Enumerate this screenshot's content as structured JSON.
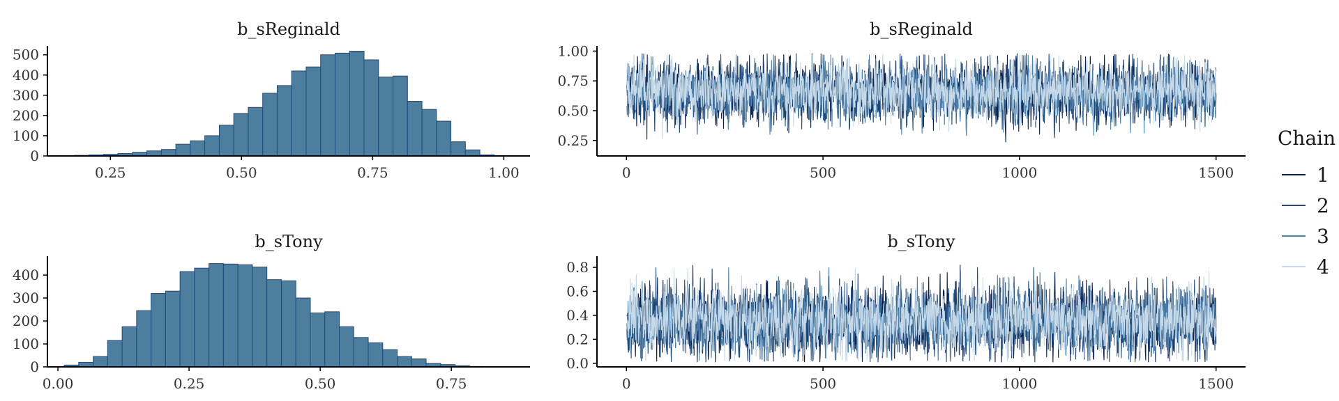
{
  "legend": {
    "title": "Chain",
    "placement": "right",
    "entries": [
      {
        "label": "1",
        "color": "#0b1f4b"
      },
      {
        "label": "2",
        "color": "#1f4a7c"
      },
      {
        "label": "3",
        "color": "#4d7fa8"
      },
      {
        "label": "4",
        "color": "#c6d9e8"
      }
    ]
  },
  "chart_data": [
    {
      "type": "bar",
      "title": "b_sReginald",
      "xlabel": "",
      "ylabel": "",
      "xlim": [
        0.13,
        1.05
      ],
      "ylim": [
        0,
        530
      ],
      "xticks": [
        0.25,
        0.5,
        0.75,
        1.0
      ],
      "xtick_labels": [
        "0.25",
        "0.50",
        "0.75",
        "1.00"
      ],
      "yticks": [
        0,
        100,
        200,
        300,
        400,
        500
      ],
      "ytick_labels": [
        "0",
        "100",
        "200",
        "300",
        "400",
        "500"
      ],
      "bin_width": 0.0276,
      "bin_start": 0.154,
      "values": [
        2,
        3,
        5,
        8,
        12,
        18,
        25,
        32,
        58,
        75,
        100,
        152,
        210,
        240,
        310,
        348,
        420,
        440,
        500,
        508,
        518,
        475,
        390,
        395,
        270,
        230,
        172,
        70,
        30,
        5,
        2
      ],
      "fill": "#4e7e9e",
      "grid": false
    },
    {
      "type": "line",
      "title": "b_sReginald",
      "xlabel": "",
      "ylabel": "",
      "xlim": [
        -75,
        1575
      ],
      "ylim": [
        0.12,
        1.02
      ],
      "xticks": [
        0,
        500,
        1000,
        1500
      ],
      "xtick_labels": [
        "0",
        "500",
        "1000",
        "1500"
      ],
      "yticks": [
        0.25,
        0.5,
        0.75,
        1.0
      ],
      "ytick_labels": [
        "0.25",
        "0.50",
        "0.75",
        "1.00"
      ],
      "iterations": 1500,
      "series": [
        {
          "name": "1",
          "mean": 0.66,
          "sd": 0.13,
          "min": 0.22,
          "max": 0.97
        },
        {
          "name": "2",
          "mean": 0.65,
          "sd": 0.13,
          "min": 0.22,
          "max": 0.98
        },
        {
          "name": "3",
          "mean": 0.66,
          "sd": 0.12,
          "min": 0.2,
          "max": 0.97
        },
        {
          "name": "4",
          "mean": 0.66,
          "sd": 0.12,
          "min": 0.16,
          "max": 0.97
        }
      ],
      "grid": false
    },
    {
      "type": "bar",
      "title": "b_sTony",
      "xlabel": "",
      "ylabel": "",
      "xlim": [
        -0.02,
        0.9
      ],
      "ylim": [
        0,
        470
      ],
      "xticks": [
        0.0,
        0.25,
        0.5,
        0.75
      ],
      "xtick_labels": [
        "0.00",
        "0.25",
        "0.50",
        "0.75"
      ],
      "yticks": [
        0,
        100,
        200,
        300,
        400
      ],
      "ytick_labels": [
        "0",
        "100",
        "200",
        "300",
        "400"
      ],
      "bin_width": 0.0276,
      "bin_start": 0.012,
      "values": [
        8,
        20,
        45,
        115,
        175,
        245,
        320,
        330,
        415,
        430,
        450,
        448,
        445,
        435,
        380,
        375,
        300,
        235,
        240,
        175,
        128,
        105,
        75,
        45,
        35,
        15,
        10,
        5,
        2,
        1
      ],
      "fill": "#4e7e9e",
      "grid": false
    },
    {
      "type": "line",
      "title": "b_sTony",
      "xlabel": "",
      "ylabel": "",
      "xlim": [
        -75,
        1575
      ],
      "ylim": [
        -0.03,
        0.87
      ],
      "xticks": [
        0,
        500,
        1000,
        1500
      ],
      "xtick_labels": [
        "0",
        "500",
        "1000",
        "1500"
      ],
      "yticks": [
        0.0,
        0.2,
        0.4,
        0.6,
        0.8
      ],
      "ytick_labels": [
        "0.0",
        "0.2",
        "0.4",
        "0.6",
        "0.8"
      ],
      "iterations": 1500,
      "series": [
        {
          "name": "1",
          "mean": 0.35,
          "sd": 0.15,
          "min": 0.01,
          "max": 0.82
        },
        {
          "name": "2",
          "mean": 0.35,
          "sd": 0.15,
          "min": 0.01,
          "max": 0.8
        },
        {
          "name": "3",
          "mean": 0.35,
          "sd": 0.14,
          "min": 0.02,
          "max": 0.8
        },
        {
          "name": "4",
          "mean": 0.36,
          "sd": 0.14,
          "min": 0.02,
          "max": 0.79
        }
      ],
      "grid": false
    }
  ]
}
